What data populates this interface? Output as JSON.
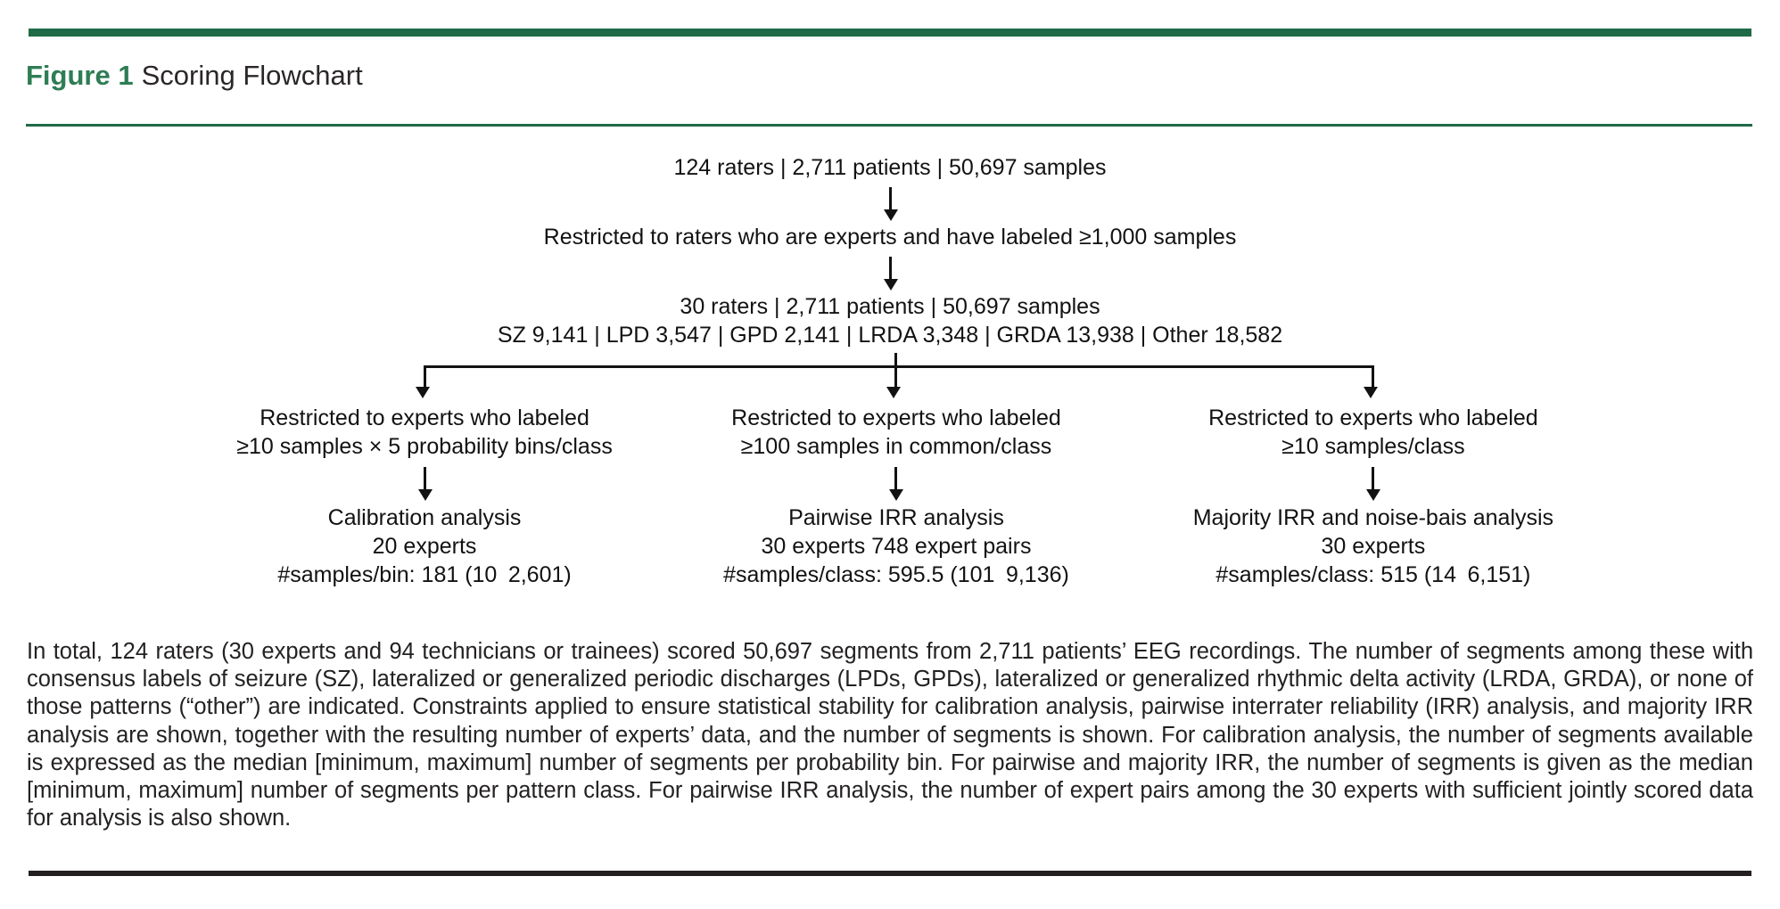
{
  "colors": {
    "accent_green": "#1f6b47",
    "title_green": "#2e7d54",
    "rule_dark": "#231f20"
  },
  "header": {
    "figure_label": "Figure 1",
    "figure_title": "Scoring Flowchart"
  },
  "flowchart": {
    "node_totals": "124 raters | 2,711 patients | 50,697 samples",
    "node_restricted_raters": "Restricted to raters who are experts and have labeled ≥1,000 samples",
    "node_experts_line1": "30 raters | 2,711 patients | 50,697 samples",
    "node_experts_line2": "SZ 9,141 | LPD 3,547 | GPD 2,141 | LRDA 3,348 | GRDA 13,938 | Other 18,582",
    "branches": [
      {
        "restriction_line1": "Restricted to experts who labeled",
        "restriction_line2": "≥10 samples × 5 probability bins/class",
        "result_line1": "Calibration analysis",
        "result_line2": "20 experts",
        "result_line3": "#samples/bin: 181 (10 2,601)"
      },
      {
        "restriction_line1": "Restricted to experts who labeled",
        "restriction_line2": "≥100 samples in common/class",
        "result_line1": "Pairwise IRR analysis",
        "result_line2": "30 experts 748 expert pairs",
        "result_line3": "#samples/class: 595.5 (101 9,136)"
      },
      {
        "restriction_line1": "Restricted to experts who labeled",
        "restriction_line2": "≥10 samples/class",
        "result_line1": "Majority IRR and noise-bais analysis",
        "result_line2": "30 experts",
        "result_line3": "#samples/class: 515 (14 6,151)"
      }
    ]
  },
  "caption": "In total, 124 raters (30 experts and 94 technicians or trainees) scored 50,697 segments from 2,711 patients’ EEG recordings. The number of segments among these with consensus labels of seizure (SZ), lateralized or generalized periodic discharges (LPDs, GPDs), lateralized or generalized rhythmic delta activity (LRDA, GRDA), or none of those patterns (“other”) are indicated. Constraints applied to ensure statistical stability for calibration analysis, pairwise interrater reliability (IRR) analysis, and majority IRR analysis are shown, together with the resulting number of experts’ data, and the number of segments is shown. For calibration analysis, the number of segments available is expressed as the median [minimum, maximum] number of segments per probability bin. For pairwise and majority IRR, the number of segments is given as the median [minimum, maximum] number of segments per pattern class. For pairwise IRR analysis, the number of expert pairs among the 30 experts with sufficient jointly scored data for analysis is also shown."
}
